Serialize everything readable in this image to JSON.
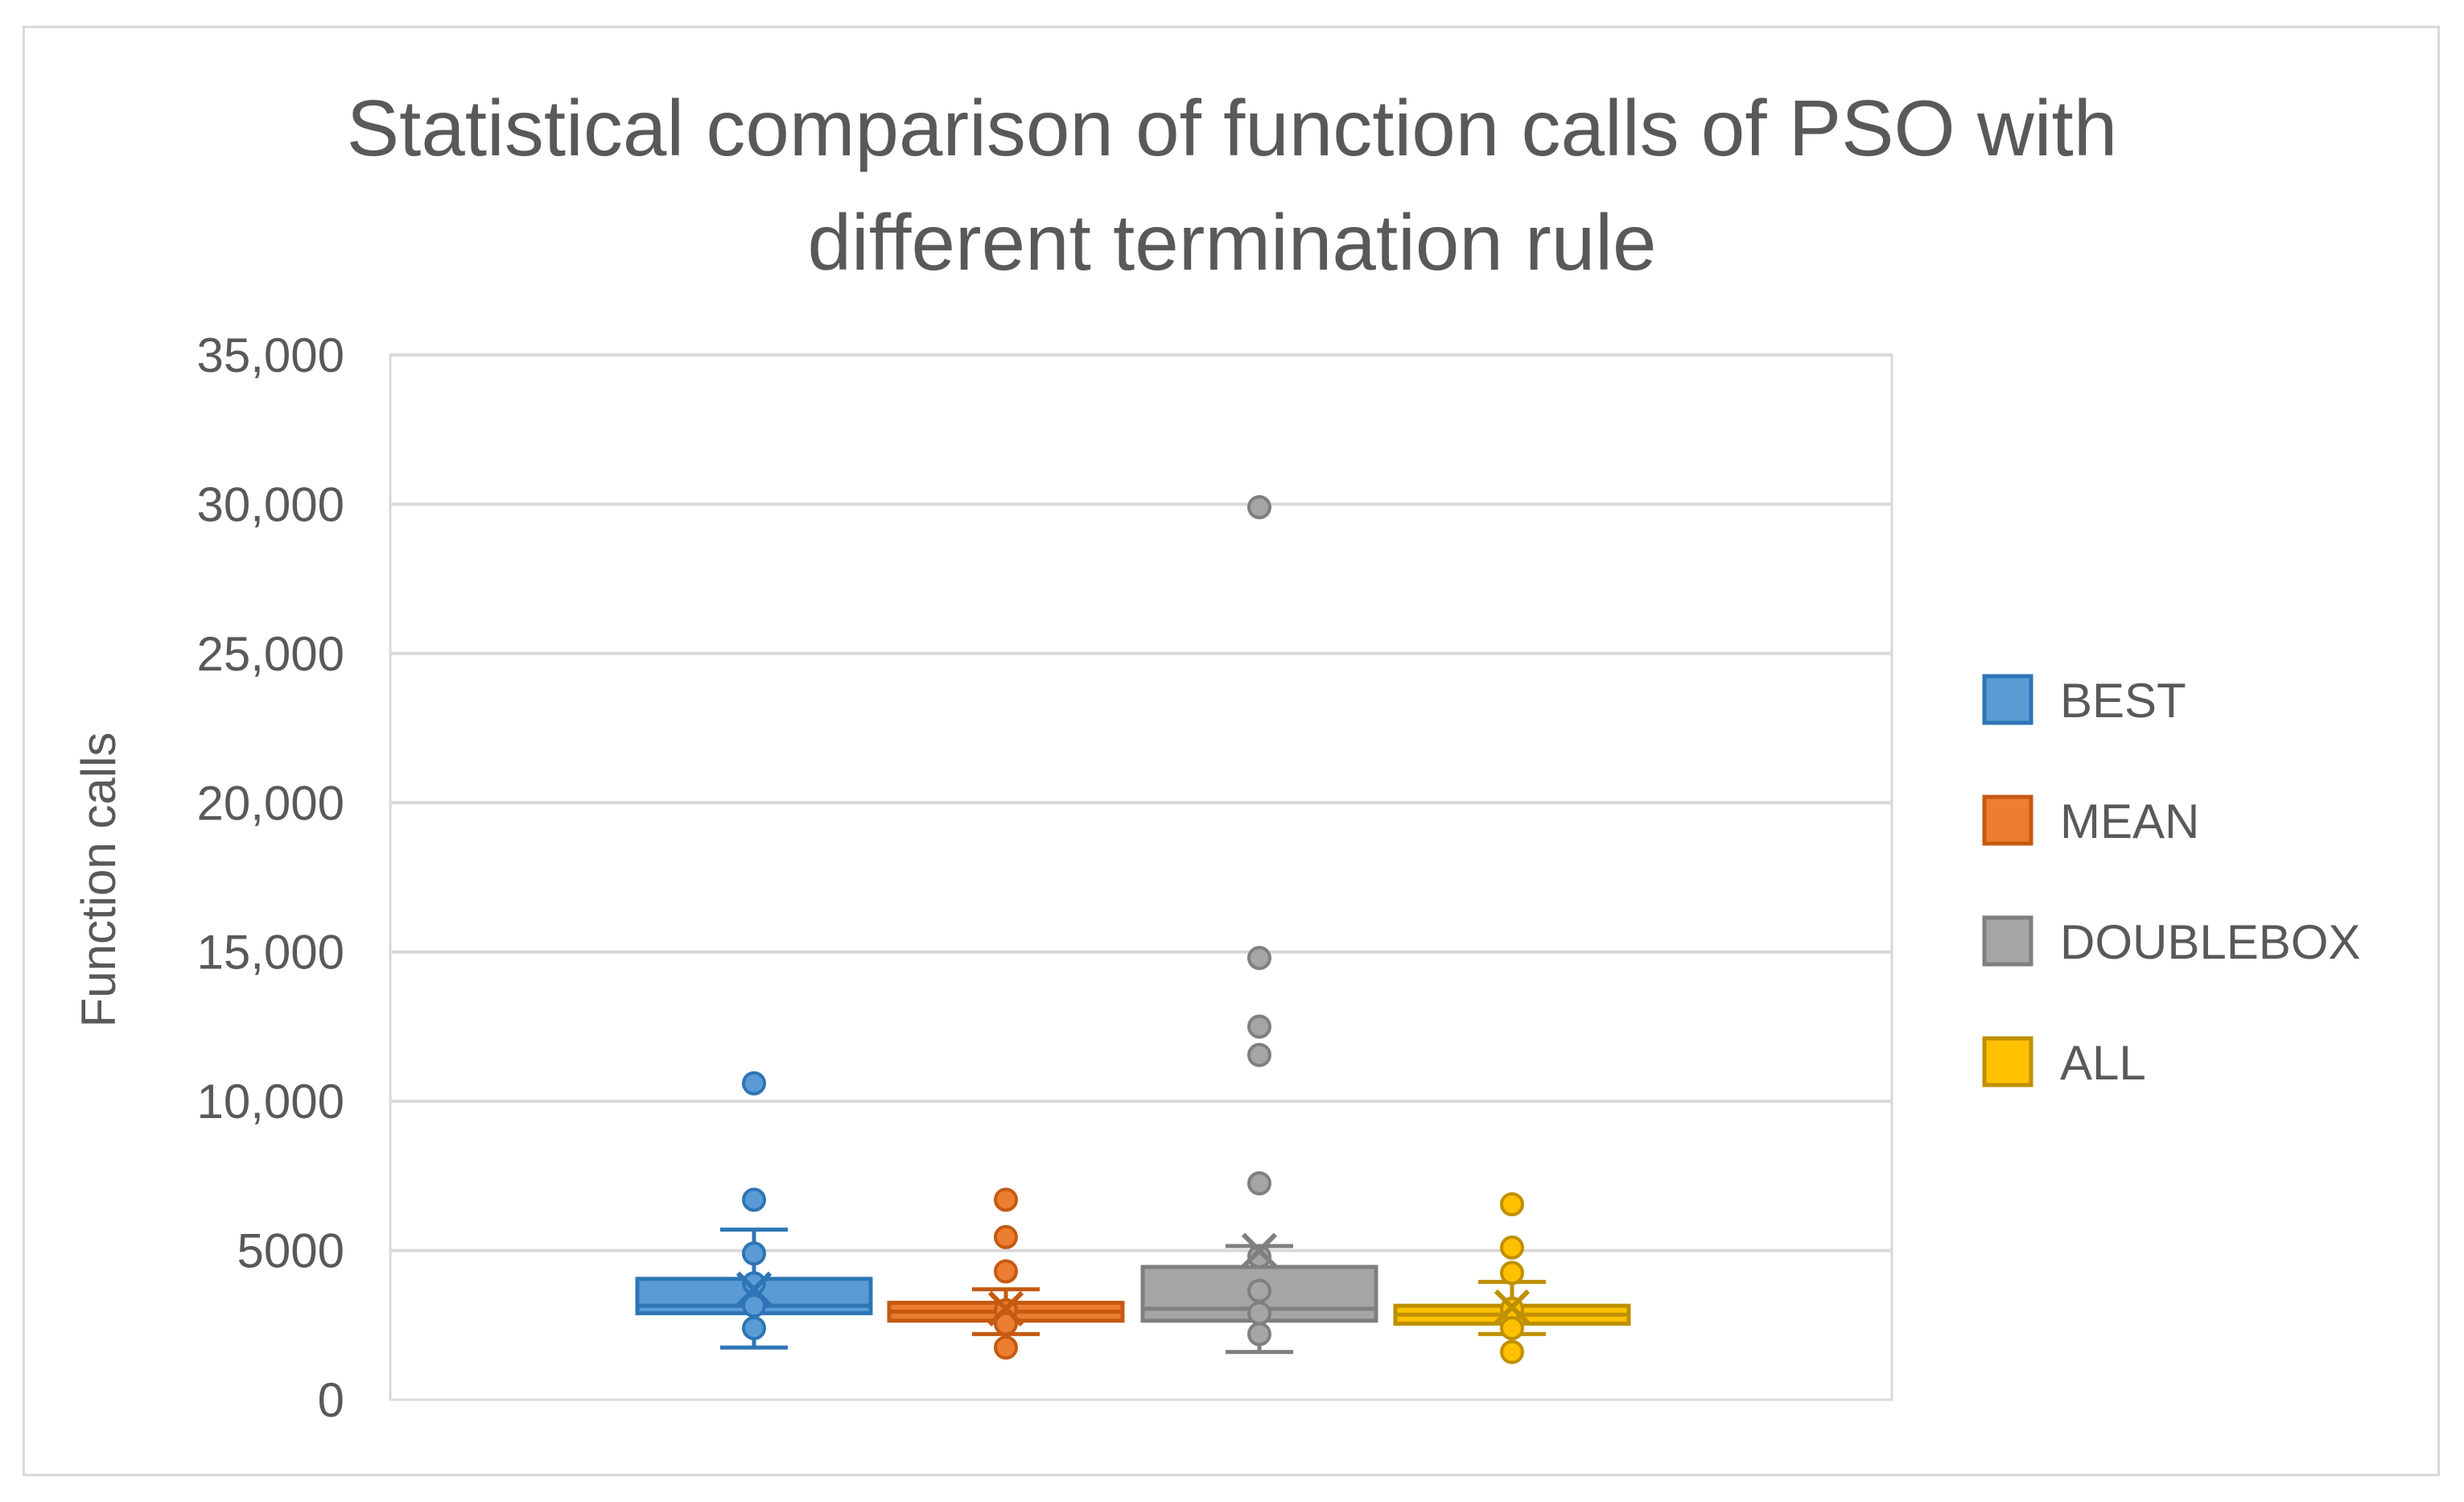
{
  "chart_data": {
    "type": "box",
    "title": "Statistical comparison of function calls of PSO with\ndifferent termination rule",
    "xlabel": "",
    "ylabel": "Function calls",
    "ylim": [
      0,
      35000
    ],
    "yticks": [
      0,
      5000,
      10000,
      15000,
      20000,
      25000,
      30000,
      35000
    ],
    "ytick_labels": [
      "0",
      "5000",
      "10,000",
      "15,000",
      "20,000",
      "25,000",
      "30,000",
      "35,000"
    ],
    "grid": true,
    "legend_position": "right",
    "series": [
      {
        "name": "BEST",
        "color": "#5b9bd5",
        "border": "#2e75b6",
        "min": 1750,
        "q1": 2900,
        "median": 3150,
        "q3": 4050,
        "max": 5700,
        "mean": 3700,
        "points": [
          10600,
          6700,
          4900,
          3900,
          3150,
          2400
        ]
      },
      {
        "name": "MEAN",
        "color": "#ed7d31",
        "border": "#c55a11",
        "min": 2200,
        "q1": 2650,
        "median": 2950,
        "q3": 3250,
        "max": 3700,
        "mean": 3050,
        "points": [
          6700,
          5450,
          4300,
          3000,
          2550,
          1750
        ]
      },
      {
        "name": "DOUBLEBOX",
        "color": "#a5a5a5",
        "border": "#7f7f7f",
        "min": 1600,
        "q1": 2650,
        "median": 3050,
        "q3": 4450,
        "max": 5150,
        "mean": 5000,
        "points": [
          29900,
          14800,
          12500,
          11550,
          7250,
          4800,
          3650,
          2900,
          2200
        ]
      },
      {
        "name": "ALL",
        "color": "#ffc000",
        "border": "#bf9000",
        "min": 2200,
        "q1": 2550,
        "median": 2850,
        "q3": 3150,
        "max": 3950,
        "mean": 3100,
        "points": [
          6550,
          5100,
          4250,
          3050,
          2400,
          1600
        ]
      }
    ]
  }
}
